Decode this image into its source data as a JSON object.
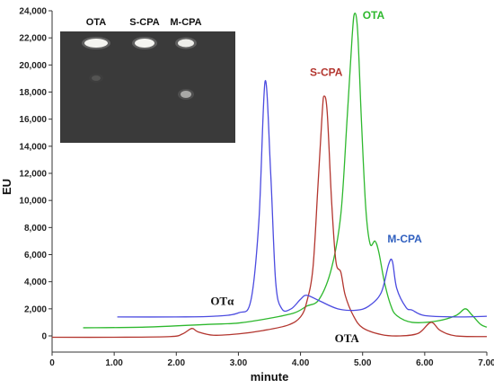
{
  "chart_data": {
    "type": "line",
    "xlabel": "minute",
    "ylabel": "EU",
    "xlim": [
      0,
      7.0
    ],
    "ylim": [
      0,
      24000
    ],
    "x_ticks": [
      "0",
      "1.00",
      "2.00",
      "3.00",
      "4.00",
      "5.00",
      "6.00",
      "7.00"
    ],
    "y_ticks": [
      "0",
      "2,000",
      "4,000",
      "6,000",
      "8,000",
      "10,000",
      "12,000",
      "14,000",
      "16,000",
      "18,000",
      "20,000",
      "22,000",
      "24,000"
    ],
    "grid": false,
    "series": [
      {
        "name": "OTA",
        "color": "#2eb82e",
        "points": [
          [
            0.5,
            600
          ],
          [
            1.5,
            650
          ],
          [
            2.5,
            850
          ],
          [
            3.0,
            950
          ],
          [
            3.5,
            1300
          ],
          [
            3.9,
            1700
          ],
          [
            4.1,
            2200
          ],
          [
            4.3,
            2700
          ],
          [
            4.5,
            5000
          ],
          [
            4.65,
            9000
          ],
          [
            4.75,
            16000
          ],
          [
            4.83,
            22000
          ],
          [
            4.87,
            23800
          ],
          [
            4.92,
            22500
          ],
          [
            4.98,
            16000
          ],
          [
            5.05,
            9500
          ],
          [
            5.12,
            6800
          ],
          [
            5.2,
            7000
          ],
          [
            5.26,
            6200
          ],
          [
            5.35,
            4000
          ],
          [
            5.45,
            2300
          ],
          [
            5.55,
            1500
          ],
          [
            5.8,
            1000
          ],
          [
            6.2,
            1100
          ],
          [
            6.5,
            1500
          ],
          [
            6.65,
            2000
          ],
          [
            6.75,
            1600
          ],
          [
            6.9,
            850
          ],
          [
            7.0,
            650
          ]
        ]
      },
      {
        "name": "S-CPA",
        "color": "#b3362f",
        "points": [
          [
            0.0,
            -100
          ],
          [
            1.0,
            -100
          ],
          [
            1.9,
            -50
          ],
          [
            2.1,
            150
          ],
          [
            2.25,
            550
          ],
          [
            2.35,
            300
          ],
          [
            2.6,
            50
          ],
          [
            3.0,
            150
          ],
          [
            3.4,
            400
          ],
          [
            3.8,
            800
          ],
          [
            4.0,
            1400
          ],
          [
            4.1,
            2500
          ],
          [
            4.2,
            5000
          ],
          [
            4.28,
            11000
          ],
          [
            4.35,
            16500
          ],
          [
            4.38,
            17700
          ],
          [
            4.43,
            16500
          ],
          [
            4.5,
            10000
          ],
          [
            4.57,
            5500
          ],
          [
            4.65,
            4700
          ],
          [
            4.72,
            3000
          ],
          [
            4.85,
            1500
          ],
          [
            5.0,
            600
          ],
          [
            5.3,
            100
          ],
          [
            5.6,
            0
          ],
          [
            5.9,
            200
          ],
          [
            6.1,
            1000
          ],
          [
            6.25,
            400
          ],
          [
            6.5,
            0
          ],
          [
            7.0,
            -50
          ]
        ]
      },
      {
        "name": "M-CPA",
        "color": "#4b4be0",
        "points": [
          [
            1.05,
            1400
          ],
          [
            2.0,
            1400
          ],
          [
            2.6,
            1450
          ],
          [
            3.0,
            1700
          ],
          [
            3.2,
            2600
          ],
          [
            3.33,
            8500
          ],
          [
            3.43,
            18800
          ],
          [
            3.52,
            12000
          ],
          [
            3.6,
            4000
          ],
          [
            3.7,
            2000
          ],
          [
            3.85,
            2000
          ],
          [
            4.0,
            2700
          ],
          [
            4.1,
            3000
          ],
          [
            4.3,
            2600
          ],
          [
            4.6,
            2000
          ],
          [
            4.9,
            1900
          ],
          [
            5.1,
            2200
          ],
          [
            5.3,
            3200
          ],
          [
            5.42,
            5300
          ],
          [
            5.48,
            5500
          ],
          [
            5.55,
            3500
          ],
          [
            5.7,
            2100
          ],
          [
            5.8,
            1900
          ],
          [
            6.0,
            1500
          ],
          [
            6.5,
            1400
          ],
          [
            7.0,
            1450
          ]
        ]
      }
    ],
    "annotations": [
      {
        "text": "OTA",
        "x": 5.0,
        "y": 23400,
        "color": "#2eb82e"
      },
      {
        "text": "S-CPA",
        "x": 4.15,
        "y": 19200,
        "color": "#b3362f"
      },
      {
        "text": "M-CPA",
        "x": 5.4,
        "y": 6900,
        "color": "#2f5fbf"
      },
      {
        "text": "OTα",
        "x": 2.55,
        "y": 2300,
        "color": "#111111"
      },
      {
        "text": "OTA",
        "x": 4.55,
        "y": -450,
        "color": "#111111"
      }
    ]
  },
  "inset": {
    "labels": [
      "OTA",
      "S-CPA",
      "M-CPA"
    ]
  }
}
